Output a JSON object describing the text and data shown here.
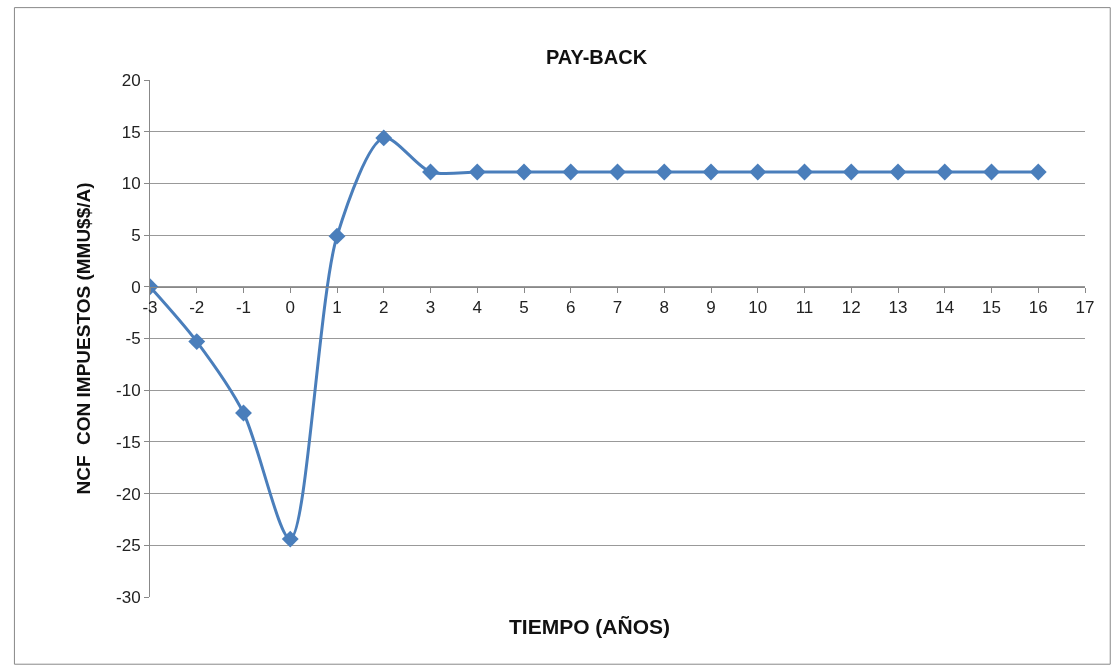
{
  "chart_data": {
    "type": "line",
    "title": "PAY-BACK",
    "xlabel": "TIEMPO (AÑOS)",
    "ylabel": "NCF  CON IMPUESTOS (MMU$$/A)",
    "x": [
      -3,
      -2,
      -1,
      0,
      1,
      2,
      3,
      4,
      5,
      6,
      7,
      8,
      9,
      10,
      11,
      12,
      13,
      14,
      15,
      16
    ],
    "series": [
      {
        "color": "#4a7ebb",
        "values": [
          0,
          -5.3,
          -12.2,
          -24.4,
          4.9,
          14.4,
          11.1,
          11.1,
          11.1,
          11.1,
          11.1,
          11.1,
          11.1,
          11.1,
          11.1,
          11.1,
          11.1,
          11.1,
          11.1,
          11.1
        ]
      }
    ],
    "xlim": [
      -3,
      17
    ],
    "xticks": [
      -3,
      -2,
      -1,
      0,
      1,
      2,
      3,
      4,
      5,
      6,
      7,
      8,
      9,
      10,
      11,
      12,
      13,
      14,
      15,
      16,
      17
    ],
    "ylim": [
      -30,
      20
    ],
    "yticks": [
      -30,
      -25,
      -20,
      -15,
      -10,
      -5,
      0,
      5,
      10,
      15,
      20
    ],
    "grid": "y",
    "marker": "diamond",
    "line_style": "solid"
  }
}
